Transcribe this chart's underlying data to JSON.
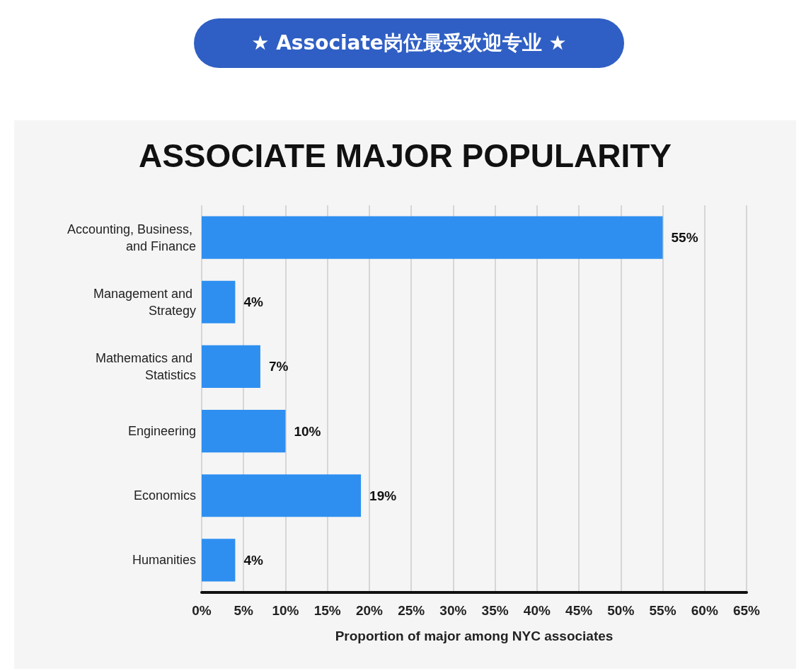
{
  "chart_data": {
    "type": "bar",
    "orientation": "horizontal",
    "title": "★ Associate岗位最受欢迎专业 ★",
    "subtitle": "ASSOCIATE MAJOR POPULARITY",
    "xlabel": "Proportion of major among NYC associates",
    "categories": [
      "Accounting, Business, and Finance",
      "Management and Strategy",
      "Mathematics and Statistics",
      "Engineering",
      "Economics",
      "Humanities"
    ],
    "values": [
      55,
      4,
      7,
      10,
      19,
      4
    ],
    "value_labels": [
      "55%",
      "4%",
      "7%",
      "10%",
      "19%",
      "4%"
    ],
    "color": "#2e8ff0",
    "xlim": [
      0,
      65
    ],
    "xticks": [
      {
        "value": 0,
        "label": "0%"
      },
      {
        "value": 5,
        "label": "5%"
      },
      {
        "value": 10,
        "label": "10%"
      },
      {
        "value": 15,
        "label": "15%"
      },
      {
        "value": 20,
        "label": "20%"
      },
      {
        "value": 25,
        "label": "25%"
      },
      {
        "value": 30,
        "label": "30%"
      },
      {
        "value": 35,
        "label": "35%"
      },
      {
        "value": 40,
        "label": "40%"
      },
      {
        "value": 45,
        "label": "45%"
      },
      {
        "value": 50,
        "label": "50%"
      },
      {
        "value": 55,
        "label": "55%"
      },
      {
        "value": 60,
        "label": "60%"
      },
      {
        "value": 65,
        "label": "65%"
      }
    ],
    "grid": "x"
  }
}
